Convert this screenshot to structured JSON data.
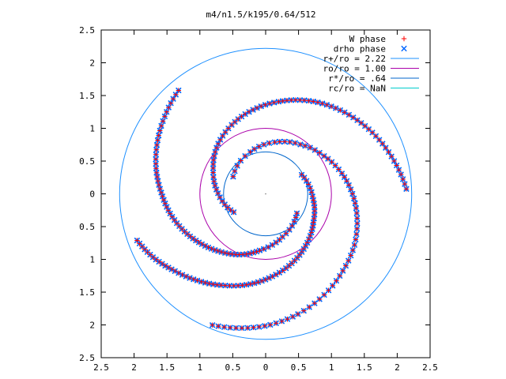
{
  "chart_data": {
    "type": "scatter",
    "title": "m4/n1.5/k195/0.64/512",
    "xlabel": "",
    "ylabel": "",
    "xlim": [
      -2.5,
      2.5
    ],
    "ylim": [
      -2.5,
      2.5
    ],
    "x_ticks": [
      -2.5,
      -2,
      -1.5,
      -1,
      -0.5,
      0,
      0.5,
      1,
      1.5,
      2,
      2.5
    ],
    "x_tick_labels": [
      "2.5",
      "2",
      "1.5",
      "1",
      "0.5",
      "0",
      "0.5",
      "1",
      "1.5",
      "2",
      "2.5"
    ],
    "y_ticks": [
      2.5,
      2,
      1.5,
      1,
      0.5,
      0,
      -0.5,
      -1,
      -1.5,
      -2,
      -2.5
    ],
    "y_tick_labels": [
      "2.5",
      "2",
      "1.5",
      "1",
      "0.5",
      "0",
      "0.5",
      "1",
      "1.5",
      "2",
      "2.5"
    ],
    "grid": false,
    "legend_position": "top-right",
    "series": [
      {
        "name": "W phase",
        "kind": "points",
        "marker": "plus",
        "color": "#ff0000"
      },
      {
        "name": "drho phase",
        "kind": "points",
        "marker": "cross",
        "color": "#0066ff"
      },
      {
        "name": "r+/ro = 2.22",
        "kind": "circle",
        "radius": 2.22,
        "color": "#1e90ff"
      },
      {
        "name": "ro/ro = 1.00",
        "kind": "circle",
        "radius": 1.0,
        "color": "#aa00aa"
      },
      {
        "name": "r*/ro = .64",
        "kind": "circle",
        "radius": 0.64,
        "color": "#0066cc"
      },
      {
        "name": "rc/ro = NaN",
        "kind": "circle",
        "radius": null,
        "color": "#00cccc"
      }
    ],
    "spiral_arms": [
      {
        "r": [
          0.56,
          0.68,
          0.8,
          0.92,
          1.06,
          1.2,
          1.32,
          1.44,
          1.56,
          1.66,
          1.78,
          1.9,
          2.0,
          2.08,
          2.16
        ],
        "theta_deg": [
          152,
          110,
          80,
          55,
          33,
          15,
          0,
          -15,
          -30,
          -45,
          -60,
          -75,
          -88,
          -100,
          -112
        ]
      },
      {
        "r": [
          0.56,
          0.7,
          0.86,
          1.0,
          1.12,
          1.24,
          1.36,
          1.48,
          1.58,
          1.7,
          1.82,
          1.94,
          2.06
        ],
        "theta_deg": [
          -32,
          -68,
          -95,
          -112,
          -128,
          -142,
          -155,
          -168,
          -180,
          -192,
          -205,
          -218,
          -230
        ]
      },
      {
        "r": [
          0.56,
          0.72,
          0.88,
          1.04,
          1.18,
          1.3,
          1.42,
          1.54,
          1.66,
          1.78,
          1.9,
          2.02,
          2.14
        ],
        "theta_deg": [
          -150,
          -180,
          -205,
          -225,
          -245,
          -262,
          -278,
          -292,
          -306,
          -320,
          -333,
          -346,
          -358
        ]
      },
      {
        "r": [
          0.62,
          0.72,
          0.84,
          0.98,
          1.12,
          1.26,
          1.4,
          1.54,
          1.68,
          1.82,
          1.96,
          2.08
        ],
        "theta_deg": [
          28,
          -5,
          -30,
          -50,
          -68,
          -85,
          -100,
          -115,
          -128,
          -140,
          -150,
          -160
        ]
      }
    ]
  }
}
